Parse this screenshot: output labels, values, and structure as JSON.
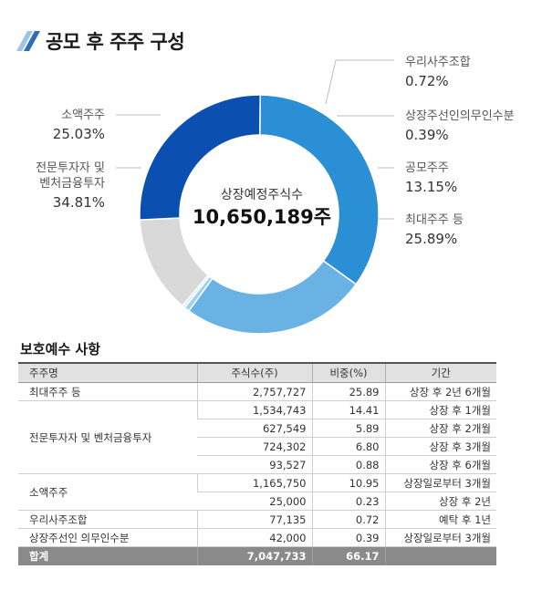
{
  "page": {
    "title": "공모 후 주주 구성",
    "title_colors": [
      "#2d6fb6",
      "#9fc3e9"
    ]
  },
  "chart_data": {
    "type": "pie",
    "center_label": "상장예정주식수",
    "center_value": "10,650,189주",
    "slices": [
      {
        "label": "우리사주조합",
        "pct_text": "0.72%",
        "value": 0.72,
        "color": "#9fd0ee"
      },
      {
        "label": "상장주선인의무인수분",
        "pct_text": "0.39%",
        "value": 0.39,
        "color": "#d7ebf7"
      },
      {
        "label": "공모주주",
        "pct_text": "13.15%",
        "value": 13.15,
        "color": "#d9d9d9"
      },
      {
        "label": "최대주주 등",
        "pct_text": "25.89%",
        "value": 25.89,
        "color": "#0b4fb0"
      },
      {
        "label_lines": [
          "전문투자자 및",
          "벤처금융투자"
        ],
        "pct_text": "34.81%",
        "value": 34.81,
        "color": "#2b8fd6"
      },
      {
        "label": "소액주주",
        "pct_text": "25.03%",
        "value": 25.03,
        "color": "#69b2e3"
      }
    ]
  },
  "lockup": {
    "title": "보호예수 사항",
    "headers": [
      "주주명",
      "주식수(주)",
      "비중(%)",
      "기간"
    ],
    "rows": [
      {
        "name": "최대주주 등",
        "shares": "2,757,727",
        "ratio": "25.89",
        "period": "상장 후 2년 6개월"
      },
      {
        "name": "전문투자자 및 벤처금융투자",
        "shares": "1,534,743",
        "ratio": "14.41",
        "period": "상장 후 1개월"
      },
      {
        "shares": "627,549",
        "ratio": "5.89",
        "period": "상장 후 2개월"
      },
      {
        "shares": "724,302",
        "ratio": "6.80",
        "period": "상장 후 3개월"
      },
      {
        "shares": "93,527",
        "ratio": "0.88",
        "period": "상장 후 6개월"
      },
      {
        "name": "소액주주",
        "shares": "1,165,750",
        "ratio": "10.95",
        "period": "상장일로부터 3개월"
      },
      {
        "shares": "25,000",
        "ratio": "0.23",
        "period": "상장 후 2년"
      },
      {
        "name": "우리사주조합",
        "shares": "77,135",
        "ratio": "0.72",
        "period": "예탁 후 1년"
      },
      {
        "name": "상장주선인 의무인수분",
        "shares": "42,000",
        "ratio": "0.39",
        "period": "상장일로부터 3개월"
      }
    ],
    "total": {
      "name": "합계",
      "shares": "7,047,733",
      "ratio": "66.17",
      "period": ""
    }
  }
}
